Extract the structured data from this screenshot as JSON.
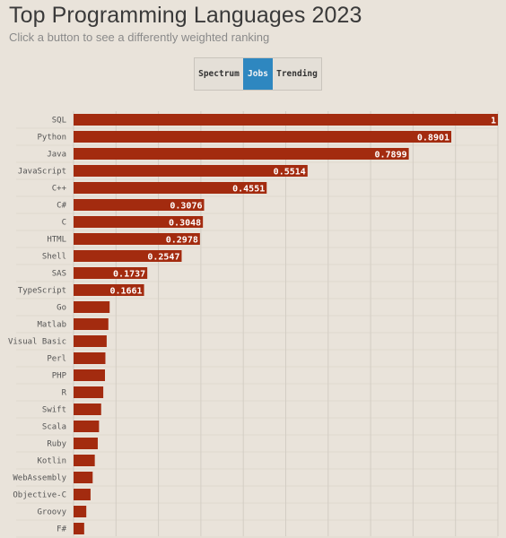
{
  "header": {
    "title": "Top Programming Languages 2023",
    "subtitle": "Click a button to see a differently weighted ranking"
  },
  "ranking_buttons": [
    {
      "label": "Spectrum",
      "selected": false
    },
    {
      "label": "Jobs",
      "selected": true
    },
    {
      "label": "Trending",
      "selected": false
    }
  ],
  "colors": {
    "bar": "#a32b0f",
    "selected_button": "#2e87c0",
    "background": "#e9e3da",
    "gridline": "#d3cdc4"
  },
  "chart_data": {
    "type": "bar",
    "orientation": "horizontal",
    "title": "Top Programming Languages 2023",
    "subtitle": "Click a button to see a differently weighted ranking",
    "categories": [
      "SQL",
      "Python",
      "Java",
      "JavaScript",
      "C++",
      "C#",
      "C",
      "HTML",
      "Shell",
      "SAS",
      "TypeScript",
      "Go",
      "Matlab",
      "Visual Basic",
      "Perl",
      "PHP",
      "R",
      "Swift",
      "Scala",
      "Ruby",
      "Kotlin",
      "WebAssembly",
      "Objective-C",
      "Groovy",
      "F#"
    ],
    "values": [
      1,
      0.8901,
      0.7899,
      0.5514,
      0.4551,
      0.3076,
      0.3048,
      0.2978,
      0.2547,
      0.1737,
      0.1661,
      0.085,
      0.082,
      0.078,
      0.075,
      0.074,
      0.07,
      0.065,
      0.06,
      0.057,
      0.05,
      0.045,
      0.04,
      0.03,
      0.025
    ],
    "value_labels": [
      "1",
      "0.8901",
      "0.7899",
      "0.5514",
      "0.4551",
      "0.3076",
      "0.3048",
      "0.2978",
      "0.2547",
      "0.1737",
      "0.1661",
      "",
      "",
      "",
      "",
      "",
      "",
      "",
      "",
      "",
      "",
      "",
      "",
      "",
      ""
    ],
    "xlim": [
      0,
      1
    ],
    "grid": true,
    "legend": "none"
  }
}
